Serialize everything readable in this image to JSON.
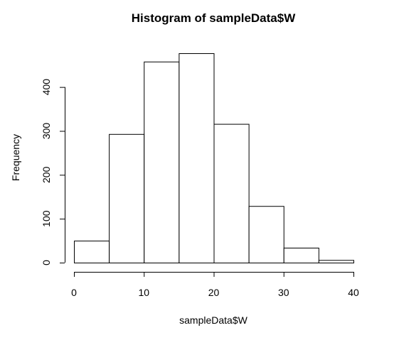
{
  "chart_data": {
    "type": "bar",
    "title": "Histogram of sampleData$W",
    "xlabel": "sampleData$W",
    "ylabel": "Frequency",
    "bins": [
      {
        "start": 0,
        "end": 5,
        "count": 50
      },
      {
        "start": 5,
        "end": 10,
        "count": 293
      },
      {
        "start": 10,
        "end": 15,
        "count": 458
      },
      {
        "start": 15,
        "end": 20,
        "count": 477
      },
      {
        "start": 20,
        "end": 25,
        "count": 316
      },
      {
        "start": 25,
        "end": 30,
        "count": 129
      },
      {
        "start": 30,
        "end": 35,
        "count": 34
      },
      {
        "start": 35,
        "end": 40,
        "count": 6
      }
    ],
    "xlim": [
      0,
      40
    ],
    "ylim": [
      0,
      477
    ],
    "x_ticks": [
      0,
      10,
      20,
      30,
      40
    ],
    "y_ticks": [
      0,
      100,
      200,
      300,
      400
    ],
    "grid": false,
    "legend": "none"
  }
}
